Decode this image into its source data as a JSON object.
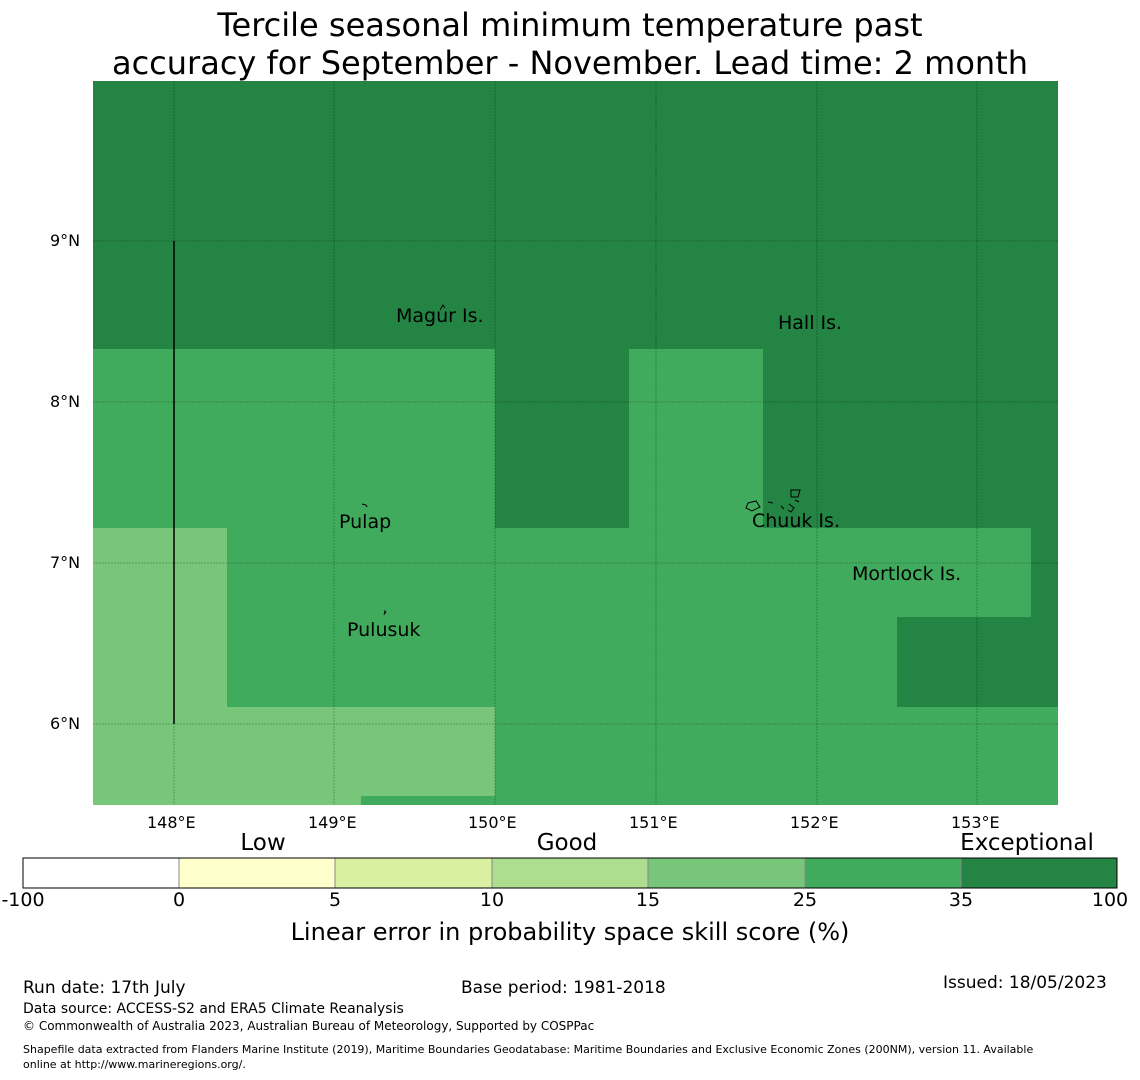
{
  "title_line1": "Tercile seasonal minimum temperature past",
  "title_line2": "accuracy for September - November. Lead time: 2 month",
  "map": {
    "lon_ticks": [
      "148°E",
      "149°E",
      "150°E",
      "151°E",
      "152°E",
      "153°E"
    ],
    "lat_ticks": [
      "9°N",
      "8°N",
      "7°N",
      "6°N"
    ],
    "places": [
      {
        "name": "Magur Is.",
        "lon": 149.4,
        "lat": 8.5
      },
      {
        "name": "Hall Is.",
        "lon": 151.75,
        "lat": 8.45
      },
      {
        "name": "Pulap",
        "lon": 149.05,
        "lat": 7.2
      },
      {
        "name": "Chuuk Is.",
        "lon": 151.6,
        "lat": 7.22
      },
      {
        "name": "Mortlock Is.",
        "lon": 152.2,
        "lat": 6.9
      },
      {
        "name": "Pulusuk",
        "lon": 149.08,
        "lat": 6.55
      }
    ],
    "colors": {
      "exceptional_dark": "#238443",
      "skill_25_35": "#41ab5d",
      "skill_15_25": "#78c679"
    }
  },
  "colorbar": {
    "categories": [
      "Low",
      "Good",
      "Exceptional"
    ],
    "bounds": [
      "-100",
      "0",
      "5",
      "10",
      "15",
      "25",
      "35",
      "100"
    ],
    "colors": [
      "#ffffff",
      "#ffffcc",
      "#d9f0a3",
      "#addd8e",
      "#78c679",
      "#41ab5d",
      "#238443"
    ],
    "label": "Linear error in probability space skill score (%)"
  },
  "footer": {
    "run_date": "Run date: 17th July",
    "base_period": "Base period: 1981-2018",
    "issued": "Issued: 18/05/2023",
    "data_source": "Data source: ACCESS-S2 and ERA5 Climate Reanalysis",
    "copyright": "© Commonwealth of Australia 2023, Australian Bureau of Meteorology, Supported by COSPPac",
    "shapefile_line1": "Shapefile data extracted from Flanders Marine Institute (2019), Maritime Boundaries Geodatabase: Maritime Boundaries and Exclusive Economic Zones (200NM), version 11. Available",
    "shapefile_line2": "online at http://www.marineregions.org/."
  }
}
